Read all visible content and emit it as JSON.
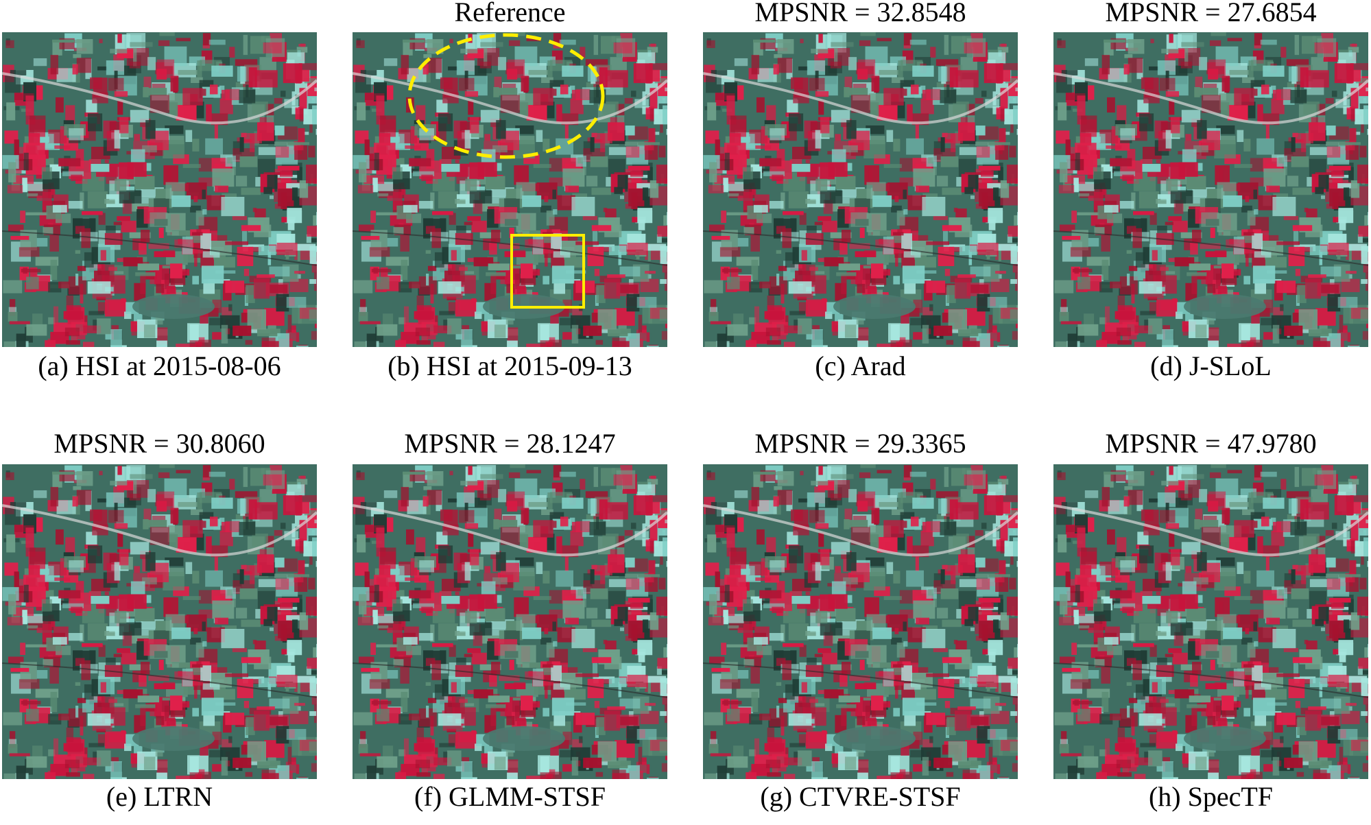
{
  "panels": [
    {
      "caption": "(a) HSI at 2015-08-06"
    },
    {
      "top_label": "Reference",
      "caption": "(b) HSI at 2015-09-13"
    },
    {
      "top_label": "MPSNR = 32.8548",
      "caption": "(c) Arad"
    },
    {
      "top_label": "MPSNR = 27.6854",
      "caption": "(d) J-SLoL"
    },
    {
      "top_label": "MPSNR = 30.8060",
      "caption": "(e) LTRN"
    },
    {
      "top_label": "MPSNR = 28.1247",
      "caption": "(f) GLMM-STSF"
    },
    {
      "top_label": "MPSNR = 29.3365",
      "caption": "(g) CTVRE-STSF"
    },
    {
      "top_label": "MPSNR = 47.9780",
      "caption": "(h) SpecTF"
    }
  ]
}
